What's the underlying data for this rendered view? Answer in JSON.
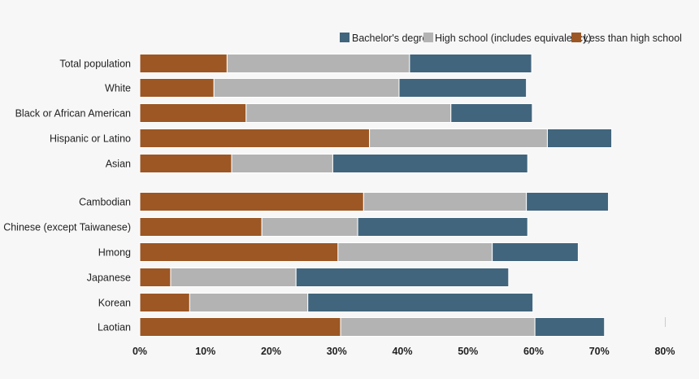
{
  "chart_data": {
    "type": "bar",
    "orientation": "horizontal",
    "stacked": true,
    "title": "",
    "xlabel": "",
    "ylabel": "",
    "xlim": [
      0,
      80
    ],
    "x_ticks": [
      "0%",
      "10%",
      "20%",
      "30%",
      "40%",
      "50%",
      "60%",
      "70%",
      "80%"
    ],
    "grid": false,
    "legend_position": "top-right",
    "categories": [
      "Total population",
      "White",
      "Black or African American",
      "Hispanic or Latino",
      "Asian",
      "Cambodian",
      "Chinese (except Taiwanese)",
      "Hmong",
      "Japanese",
      "Korean",
      "Laotian"
    ],
    "series": [
      {
        "name": "Less than high school",
        "color": "#9c5724",
        "values": [
          13.3,
          11.3,
          16.2,
          35.0,
          14.0,
          34.1,
          18.6,
          30.2,
          4.7,
          7.6,
          30.6
        ]
      },
      {
        "name": "High school (includes equivalency)",
        "color": "#b3b3b3",
        "values": [
          27.8,
          28.2,
          31.2,
          27.1,
          15.4,
          24.8,
          14.6,
          23.5,
          19.1,
          18.0,
          29.6
        ]
      },
      {
        "name": "Bachelor's degree",
        "color": "#41657c",
        "values": [
          18.6,
          19.4,
          12.4,
          9.8,
          29.7,
          12.5,
          25.9,
          13.1,
          32.4,
          34.3,
          10.6
        ]
      }
    ],
    "legend": [
      "Bachelor's degree",
      "High school (includes equivalency)",
      "Less than high school"
    ]
  }
}
